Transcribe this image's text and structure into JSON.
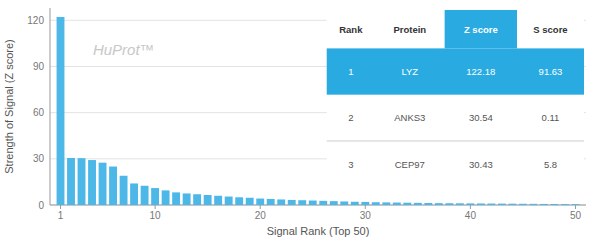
{
  "chart_data": {
    "type": "bar",
    "xlabel": "Signal Rank (Top 50)",
    "ylabel": "Strength of Signal (Z score)",
    "annotations": [
      "HuProt™"
    ],
    "x": [
      1,
      2,
      3,
      4,
      5,
      6,
      7,
      8,
      9,
      10,
      11,
      12,
      13,
      14,
      15,
      16,
      17,
      18,
      19,
      20,
      21,
      22,
      23,
      24,
      25,
      26,
      27,
      28,
      29,
      30,
      31,
      32,
      33,
      34,
      35,
      36,
      37,
      38,
      39,
      40,
      41,
      42,
      43,
      44,
      45,
      46,
      47,
      48,
      49,
      50
    ],
    "values": [
      122.18,
      30.54,
      30.43,
      29.2,
      27.5,
      25.0,
      19.0,
      14.0,
      12.5,
      11.0,
      9.5,
      8.2,
      7.5,
      7.0,
      6.5,
      6.0,
      5.5,
      5.0,
      4.7,
      4.2,
      3.9,
      3.6,
      3.3,
      3.1,
      2.9,
      2.7,
      2.5,
      2.3,
      2.1,
      2.0,
      1.8,
      1.7,
      1.6,
      1.5,
      1.4,
      1.3,
      1.2,
      1.15,
      1.1,
      1.05,
      1.0,
      0.95,
      0.9,
      0.85,
      0.8,
      0.75,
      0.7,
      0.65,
      0.6,
      0.55
    ],
    "color": "#4db8e8",
    "xlim": [
      0.0,
      51
    ],
    "xticks": [
      1,
      10,
      20,
      30,
      40,
      50
    ],
    "ylim": [
      0,
      128
    ],
    "yticks": [
      0,
      30,
      60,
      90,
      120
    ],
    "grid": true,
    "table": {
      "header": [
        "Rank",
        "Protein",
        "Z score",
        "S score"
      ],
      "rows": [
        [
          "1",
          "LYZ",
          "122.18",
          "91.63"
        ],
        [
          "2",
          "ANKS3",
          "30.54",
          "0.11"
        ],
        [
          "3",
          "CEP97",
          "30.43",
          "5.8"
        ]
      ],
      "color": "#29abe2"
    }
  }
}
